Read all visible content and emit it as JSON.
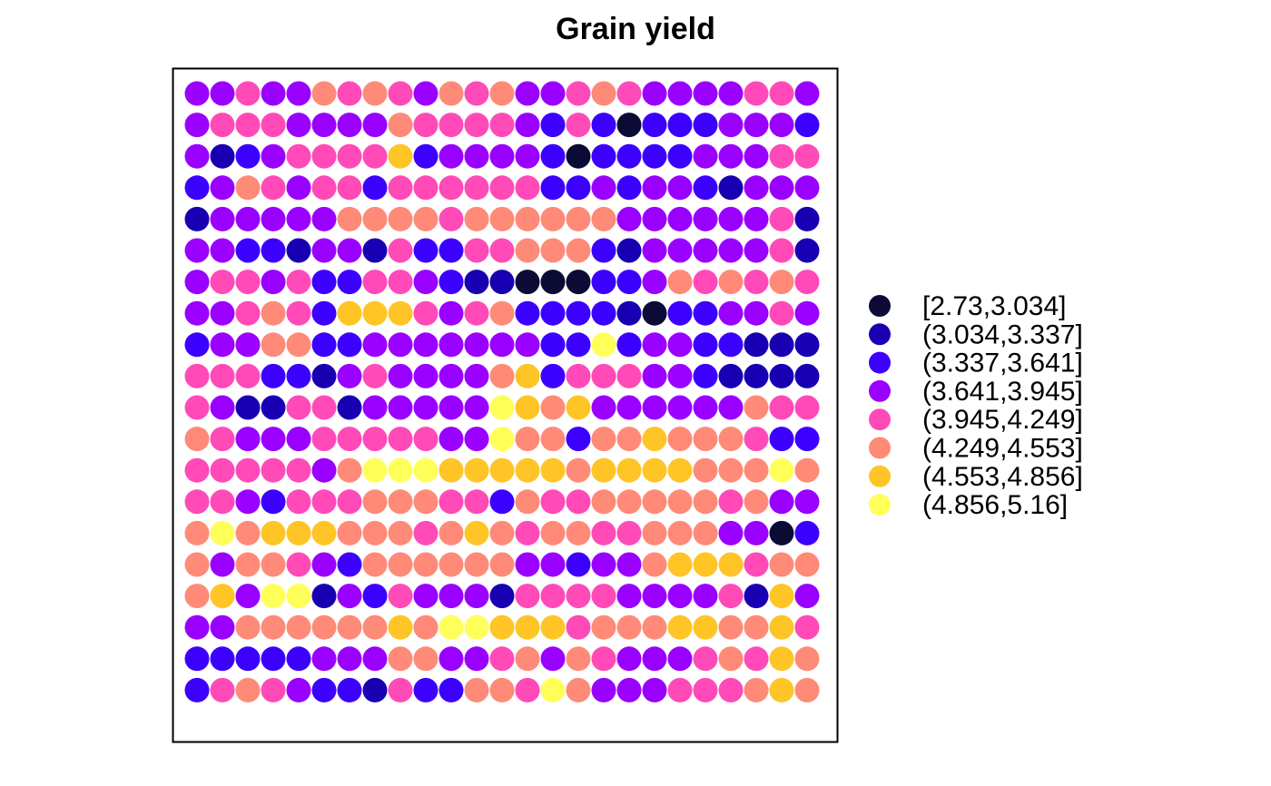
{
  "chart_data": {
    "type": "scatter",
    "title": "Grain yield",
    "legend": {
      "position": "right",
      "classes": [
        {
          "label": "[2.73,3.034]",
          "color": "#0b0b36"
        },
        {
          "label": "(3.034,3.337]",
          "color": "#1800b2"
        },
        {
          "label": "(3.337,3.641]",
          "color": "#3c00ff"
        },
        {
          "label": "(3.641,3.945]",
          "color": "#9a00ff"
        },
        {
          "label": "(3.945,4.249]",
          "color": "#ff4ab8"
        },
        {
          "label": "(4.249,4.553]",
          "color": "#ff8a78"
        },
        {
          "label": "(4.553,4.856]",
          "color": "#ffc526"
        },
        {
          "label": "(4.856,5.16]",
          "color": "#ffff5a"
        }
      ]
    },
    "grid_columns": 25,
    "grid_rows": 20,
    "class_grid": [
      "3343354543545334543333443",
      "3444333354444324202223332",
      "3123444462333320222233344",
      "2354344244444422323321333",
      "1333335555455555533333341",
      "3322133142244555213333341",
      "3443422443211000223545454",
      "3345426664345222210223343",
      "2335522333333322723322111",
      "4442213433335624443321111",
      "4311441333337656333333544",
      "5433344444337552556555422",
      "4444435777666665666655575",
      "4432444555442544555554533",
      "5756665554565455445553302",
      "5355432555555332335666455",
      "5637713243331444433334163",
      "3355555565776664555665564",
      "2222233355334535433345465",
      "2454322142255475333444565"
    ]
  }
}
